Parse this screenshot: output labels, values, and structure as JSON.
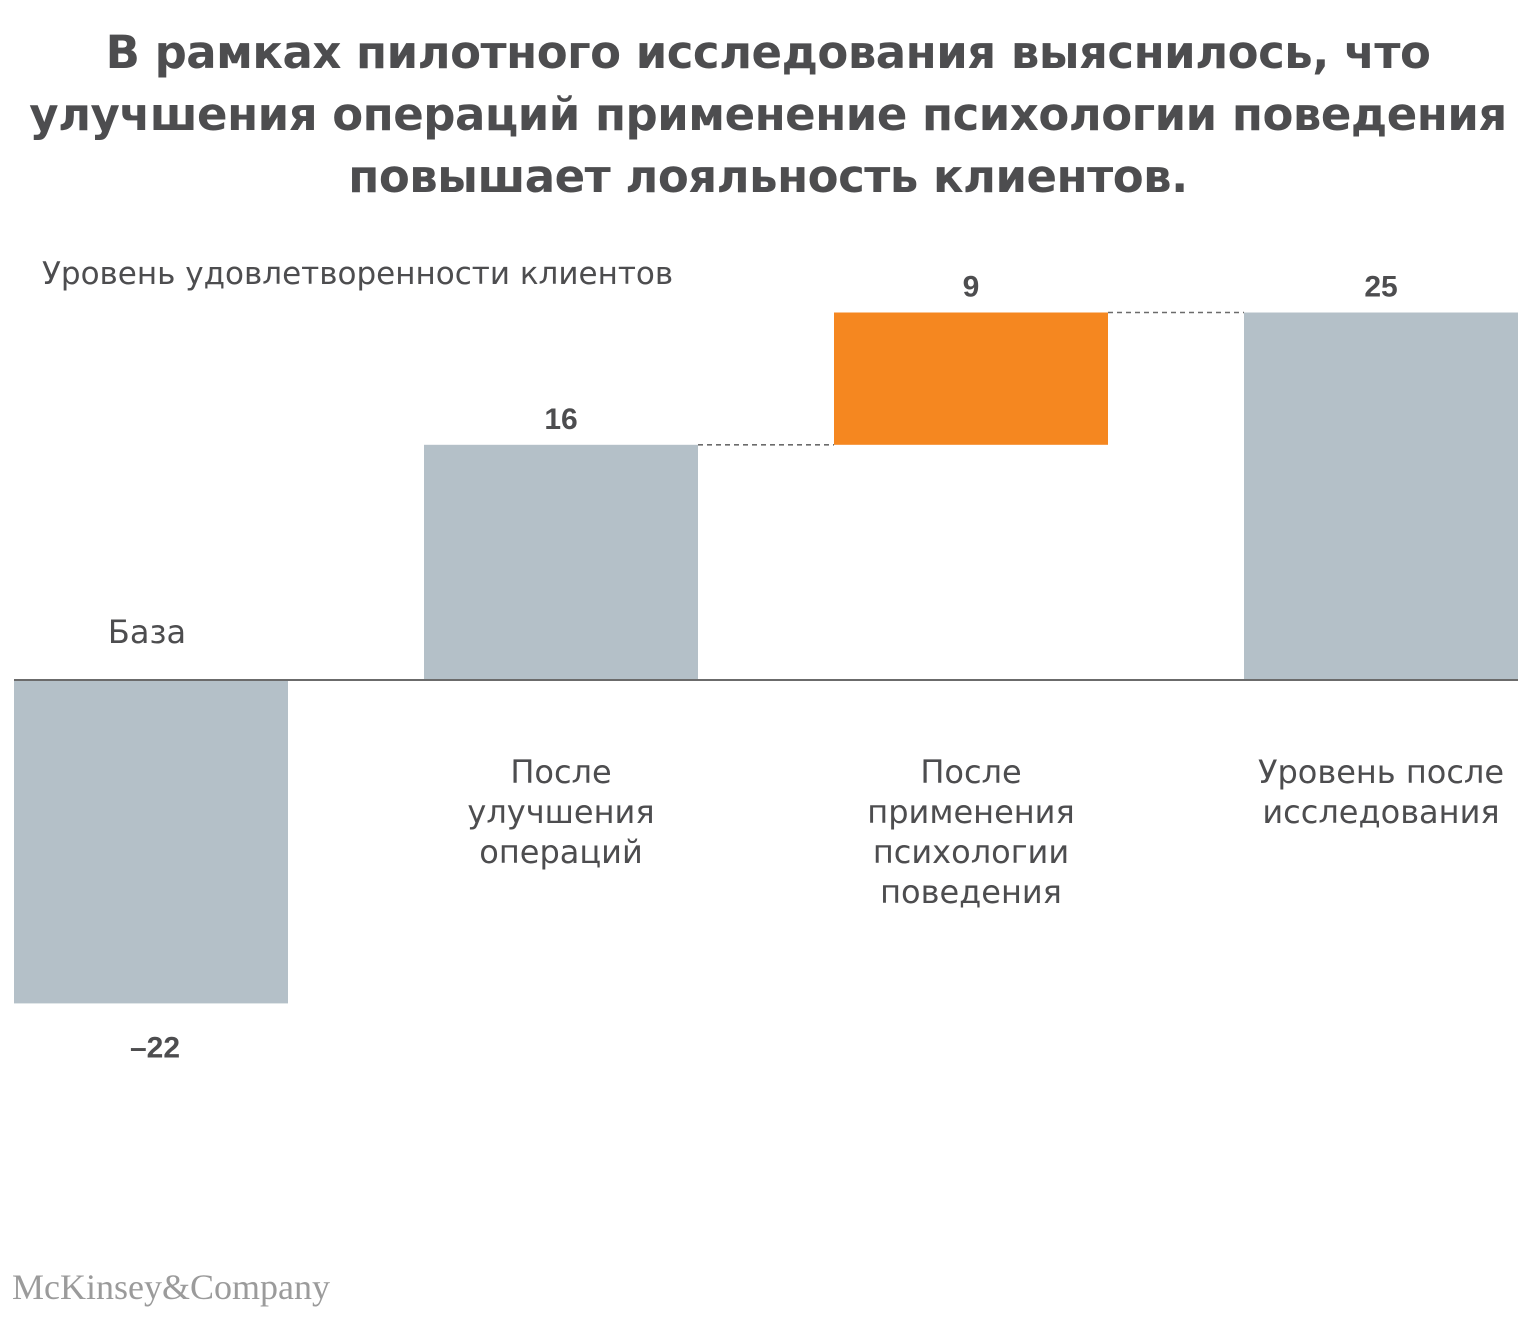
{
  "title": "В рамках пилотного исследования выяснилось, что улучшения операций применение психологии поведения повышает лояльность клиентов.",
  "logo": "McKinsey&Company",
  "chart_data": {
    "type": "bar",
    "subtype": "waterfall",
    "ylabel": "Уровень удовлетворенности клиентов",
    "categories": [
      "База",
      "После улучшения операций",
      "После применения психологии поведения",
      "Уровень после исследования"
    ],
    "category_lines": [
      [
        "База"
      ],
      [
        "После",
        "улучшения",
        "операций"
      ],
      [
        "После",
        "применения",
        "психологии",
        "поведения"
      ],
      [
        "Уровень после",
        "исследования"
      ]
    ],
    "values": [
      -22,
      16,
      9,
      25
    ],
    "value_labels": [
      "–22",
      "16",
      "9",
      "25"
    ],
    "bar_kinds": [
      "total",
      "total",
      "increment",
      "total"
    ],
    "increment_base": 16,
    "ylim": [
      -25,
      27
    ],
    "grid": false,
    "legend": "none",
    "colors": {
      "total": "#b4c0c8",
      "increment": "#f58720",
      "axis": "#6b6b6b",
      "connector": "#6b6b6b",
      "text": "#4d4d4f"
    }
  }
}
